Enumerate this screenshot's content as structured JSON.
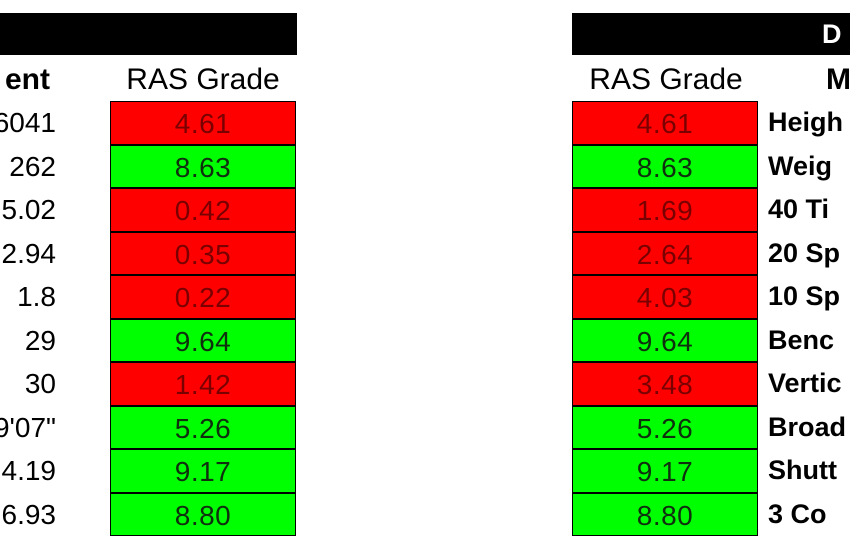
{
  "left_panel": {
    "measurement_header": "ent",
    "ras_header": "RAS Grade",
    "rows": [
      {
        "value": "6041",
        "grade": "4.61",
        "status": "red"
      },
      {
        "value": "262",
        "grade": "8.63",
        "status": "green"
      },
      {
        "value": "5.02",
        "grade": "0.42",
        "status": "red"
      },
      {
        "value": "2.94",
        "grade": "0.35",
        "status": "red"
      },
      {
        "value": "1.8",
        "grade": "0.22",
        "status": "red"
      },
      {
        "value": "29",
        "grade": "9.64",
        "status": "green"
      },
      {
        "value": "30",
        "grade": "1.42",
        "status": "red"
      },
      {
        "value": "9'07\"",
        "grade": "5.26",
        "status": "green"
      },
      {
        "value": "4.19",
        "grade": "9.17",
        "status": "green"
      },
      {
        "value": "6.93",
        "grade": "8.80",
        "status": "green"
      }
    ]
  },
  "right_panel": {
    "header_bar": "D",
    "ras_header": "RAS Grade",
    "measure_header": "M",
    "rows": [
      {
        "grade": "4.61",
        "status": "red",
        "label": "Heigh"
      },
      {
        "grade": "8.63",
        "status": "green",
        "label": "Weig"
      },
      {
        "grade": "1.69",
        "status": "red",
        "label": "40 Ti"
      },
      {
        "grade": "2.64",
        "status": "red",
        "label": "20 Sp"
      },
      {
        "grade": "4.03",
        "status": "red",
        "label": "10 Sp"
      },
      {
        "grade": "9.64",
        "status": "green",
        "label": "Benc"
      },
      {
        "grade": "3.48",
        "status": "red",
        "label": "Vertic"
      },
      {
        "grade": "5.26",
        "status": "green",
        "label": "Broad"
      },
      {
        "grade": "9.17",
        "status": "green",
        "label": "Shutt"
      },
      {
        "grade": "8.80",
        "status": "green",
        "label": "3 Co"
      }
    ]
  },
  "colors": {
    "red": "#ff0000",
    "green": "#00ff00",
    "header_bar": "#000000"
  }
}
